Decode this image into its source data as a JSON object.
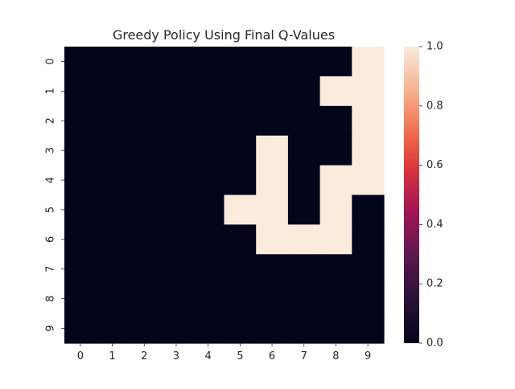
{
  "chart_data": {
    "type": "heatmap",
    "title": "Greedy Policy Using Final Q-Values",
    "xlabel": "",
    "ylabel": "",
    "x_tick_labels": [
      "0",
      "1",
      "2",
      "3",
      "4",
      "5",
      "6",
      "7",
      "8",
      "9"
    ],
    "y_tick_labels": [
      "0",
      "1",
      "2",
      "3",
      "4",
      "5",
      "6",
      "7",
      "8",
      "9"
    ],
    "matrix": [
      [
        0,
        0,
        0,
        0,
        0,
        0,
        0,
        0,
        0,
        1
      ],
      [
        0,
        0,
        0,
        0,
        0,
        0,
        0,
        0,
        1,
        1
      ],
      [
        0,
        0,
        0,
        0,
        0,
        0,
        0,
        0,
        0,
        1
      ],
      [
        0,
        0,
        0,
        0,
        0,
        0,
        1,
        0,
        0,
        1
      ],
      [
        0,
        0,
        0,
        0,
        0,
        0,
        1,
        0,
        1,
        1
      ],
      [
        0,
        0,
        0,
        0,
        0,
        1,
        1,
        0,
        1,
        0
      ],
      [
        0,
        0,
        0,
        0,
        0,
        0,
        1,
        1,
        1,
        0
      ],
      [
        0,
        0,
        0,
        0,
        0,
        0,
        0,
        0,
        0,
        0
      ],
      [
        0,
        0,
        0,
        0,
        0,
        0,
        0,
        0,
        0,
        0
      ],
      [
        0,
        0,
        0,
        0,
        0,
        0,
        0,
        0,
        0,
        0
      ]
    ],
    "value_range": [
      0,
      1
    ],
    "colorbar": {
      "ticks": [
        0.0,
        0.2,
        0.4,
        0.6,
        0.8,
        1.0
      ],
      "tick_labels": [
        "0.0",
        "0.2",
        "0.4",
        "0.6",
        "0.8",
        "1.0"
      ],
      "colormap": "rocket"
    },
    "colors": {
      "low": "#03051a",
      "high": "#faebdd"
    },
    "grid": false,
    "legend": "colorbar right"
  }
}
